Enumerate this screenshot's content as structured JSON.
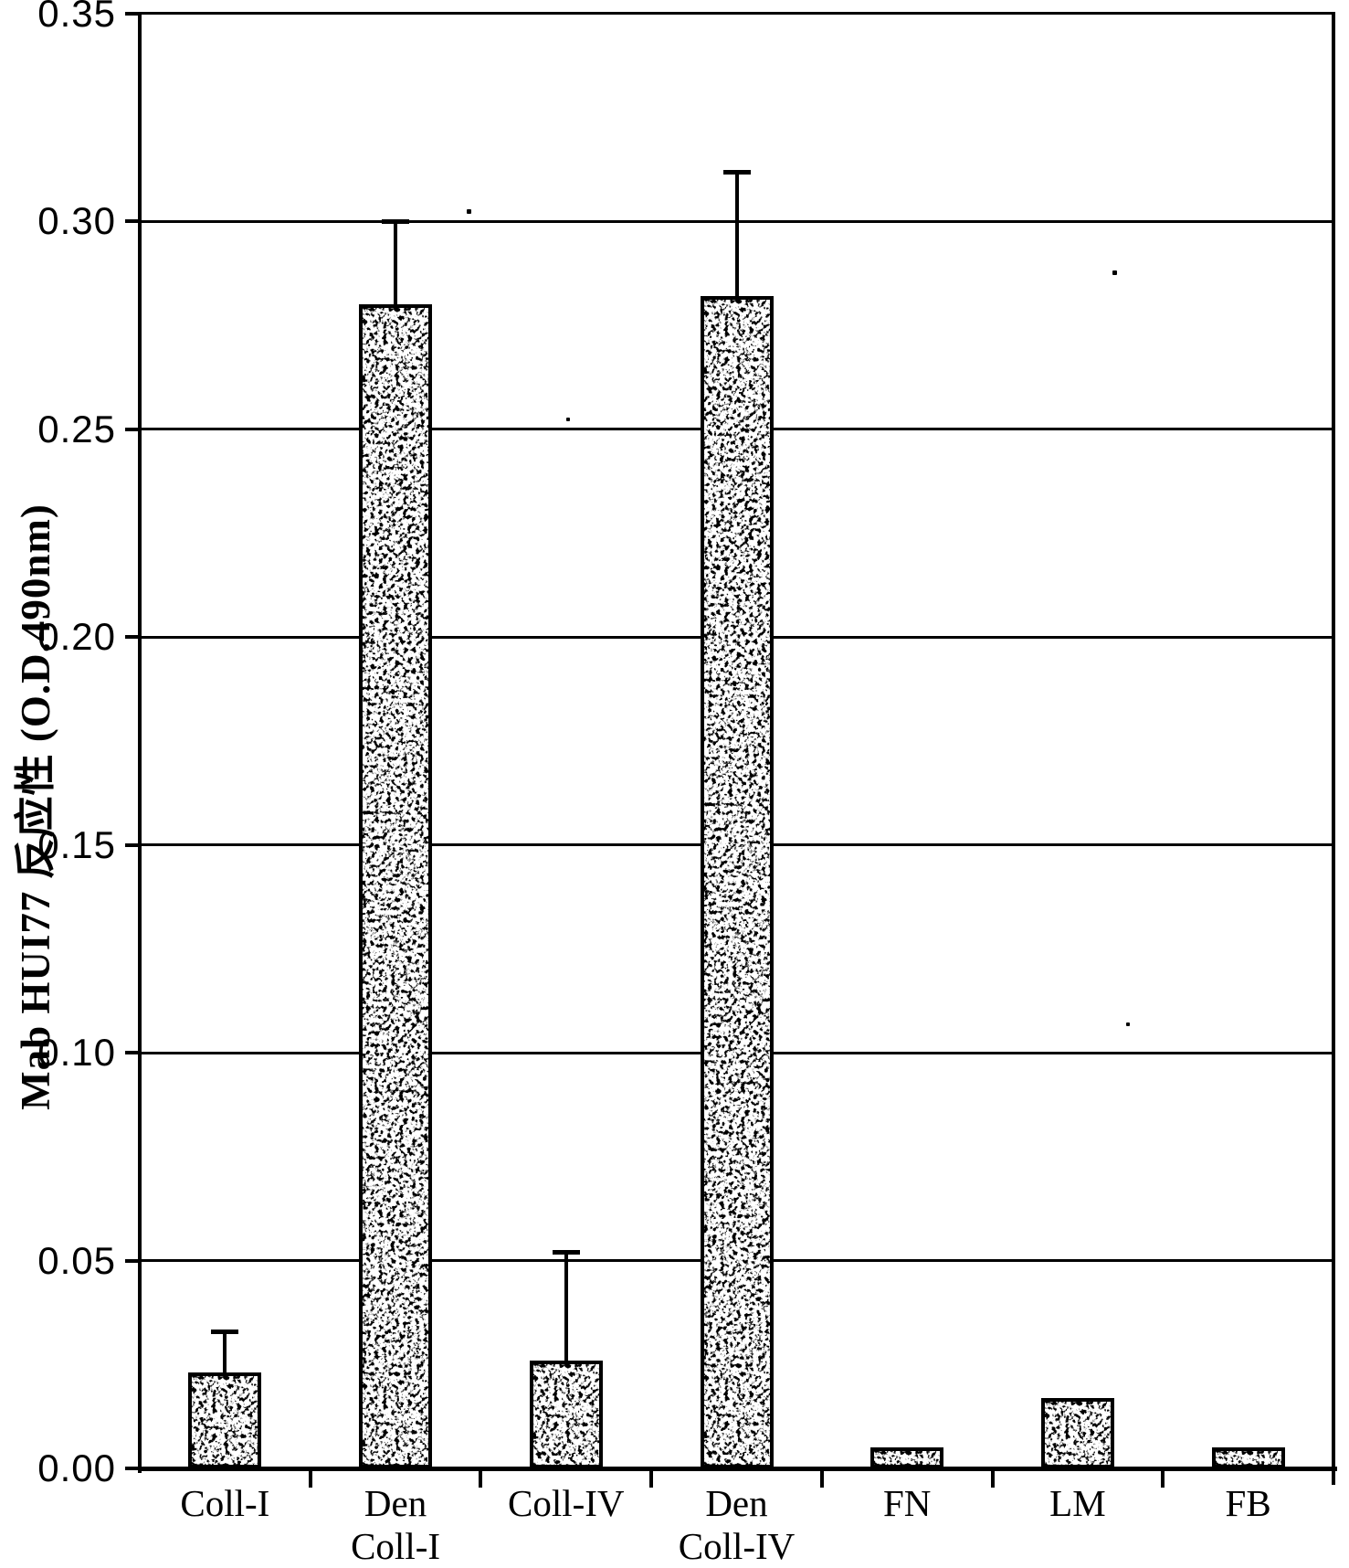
{
  "chart_data": {
    "type": "bar",
    "title": "",
    "xlabel": "",
    "ylabel": "Mab HUI77 反应性 (O.D.490nm)",
    "ylim": [
      0,
      0.35
    ],
    "grid": "horizontal solid black lines at every 0.05",
    "legend": null,
    "frame": true,
    "background_color": "#ffffff",
    "ink_color": "#000000",
    "bar_style": "white bars with black stipple (scanned halftone) fill and thick black outline",
    "yticks": [
      {
        "value": 0.0,
        "label": "0.00"
      },
      {
        "value": 0.05,
        "label": "0.05"
      },
      {
        "value": 0.1,
        "label": "0.10"
      },
      {
        "value": 0.15,
        "label": "0.15"
      },
      {
        "value": 0.2,
        "label": "0.20"
      },
      {
        "value": 0.25,
        "label": "0.25"
      },
      {
        "value": 0.3,
        "label": "0.30"
      },
      {
        "value": 0.35,
        "label": "0.35"
      }
    ],
    "categories": [
      {
        "label_lines": [
          "Coll-I"
        ],
        "value": 0.023,
        "error_top": 0.033
      },
      {
        "label_lines": [
          "Den",
          "Coll-I"
        ],
        "value": 0.28,
        "error_top": 0.3
      },
      {
        "label_lines": [
          "Coll-IV"
        ],
        "value": 0.026,
        "error_top": 0.052
      },
      {
        "label_lines": [
          "Den",
          "Coll-IV"
        ],
        "value": 0.282,
        "error_top": 0.312
      },
      {
        "label_lines": [
          "FN"
        ],
        "value": 0.005,
        "error_top": null
      },
      {
        "label_lines": [
          "LM"
        ],
        "value": 0.017,
        "error_top": null
      },
      {
        "label_lines": [
          "FB"
        ],
        "value": 0.005,
        "error_top": null
      }
    ]
  }
}
